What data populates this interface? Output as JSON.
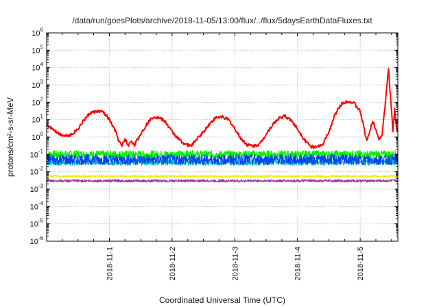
{
  "chart_data": {
    "type": "line",
    "title": "/data/run/goesPlots/archive/2018-11-05/13:00/flux/../flux/5daysEarthDataFluxes.txt",
    "xlabel": "Coordinated Universal Time (UTC)",
    "ylabel": "protons/cm²-s-sr-MeV",
    "ylim": [
      1e-06,
      1000000.0
    ],
    "log_y": true,
    "grid": true,
    "legend": "none",
    "x_ticks": [
      "2018-11-1",
      "2018-11-2",
      "2018-11-3",
      "2018-11-4",
      "2018-11-5"
    ],
    "y_tick_exponents": [
      -6,
      -5,
      -4,
      -3,
      -2,
      -1,
      0,
      1,
      2,
      3,
      4,
      5,
      6
    ],
    "x_range_days": [
      0,
      5.6
    ],
    "series": [
      {
        "color": "#ff0000",
        "points": [
          [
            0.0,
            5
          ],
          [
            0.1,
            3
          ],
          [
            0.2,
            1.5
          ],
          [
            0.3,
            1.2
          ],
          [
            0.4,
            1.4
          ],
          [
            0.5,
            3
          ],
          [
            0.6,
            10
          ],
          [
            0.7,
            25
          ],
          [
            0.8,
            30
          ],
          [
            0.9,
            28
          ],
          [
            1.0,
            10
          ],
          [
            1.1,
            2
          ],
          [
            1.15,
            0.6
          ],
          [
            1.2,
            0.3
          ],
          [
            1.25,
            0.8
          ],
          [
            1.3,
            0.3
          ],
          [
            1.35,
            0.6
          ],
          [
            1.4,
            0.35
          ],
          [
            1.5,
            1.5
          ],
          [
            1.6,
            6
          ],
          [
            1.7,
            15
          ],
          [
            1.8,
            13
          ],
          [
            1.9,
            7
          ],
          [
            2.0,
            2
          ],
          [
            2.1,
            0.8
          ],
          [
            2.2,
            0.4
          ],
          [
            2.3,
            0.3
          ],
          [
            2.4,
            0.8
          ],
          [
            2.5,
            2
          ],
          [
            2.6,
            6
          ],
          [
            2.7,
            13
          ],
          [
            2.8,
            15
          ],
          [
            2.9,
            10
          ],
          [
            3.0,
            3
          ],
          [
            3.1,
            0.8
          ],
          [
            3.2,
            0.35
          ],
          [
            3.3,
            0.3
          ],
          [
            3.4,
            0.4
          ],
          [
            3.5,
            1.5
          ],
          [
            3.6,
            5
          ],
          [
            3.7,
            12
          ],
          [
            3.8,
            16
          ],
          [
            3.9,
            9
          ],
          [
            4.0,
            3
          ],
          [
            4.1,
            0.8
          ],
          [
            4.2,
            0.3
          ],
          [
            4.3,
            0.25
          ],
          [
            4.4,
            0.35
          ],
          [
            4.5,
            2
          ],
          [
            4.6,
            20
          ],
          [
            4.7,
            80
          ],
          [
            4.8,
            120
          ],
          [
            4.9,
            90
          ],
          [
            5.0,
            30
          ],
          [
            5.05,
            5
          ],
          [
            5.1,
            0.6
          ],
          [
            5.15,
            2
          ],
          [
            5.2,
            8
          ],
          [
            5.25,
            3
          ],
          [
            5.3,
            0.7
          ],
          [
            5.35,
            1.5
          ],
          [
            5.4,
            80
          ],
          [
            5.45,
            9000
          ],
          [
            5.5,
            30
          ],
          [
            5.52,
            2
          ],
          [
            5.55,
            40
          ],
          [
            5.58,
            3
          ],
          [
            5.6,
            2
          ]
        ]
      },
      {
        "color": "#00ee00",
        "points": [
          [
            0,
            0.1
          ],
          [
            5.6,
            0.1
          ]
        ]
      },
      {
        "color": "#00bbbb",
        "points": [
          [
            0,
            0.035
          ],
          [
            5.6,
            0.035
          ]
        ]
      },
      {
        "color": "#0044ee",
        "points": [
          [
            0,
            0.05
          ],
          [
            5.6,
            0.05
          ]
        ]
      },
      {
        "color": "#eeee00",
        "points": [
          [
            0,
            0.0055
          ],
          [
            5.6,
            0.0055
          ]
        ]
      },
      {
        "color": "#993399",
        "points": [
          [
            0,
            0.003
          ],
          [
            5.6,
            0.003
          ]
        ]
      }
    ]
  }
}
